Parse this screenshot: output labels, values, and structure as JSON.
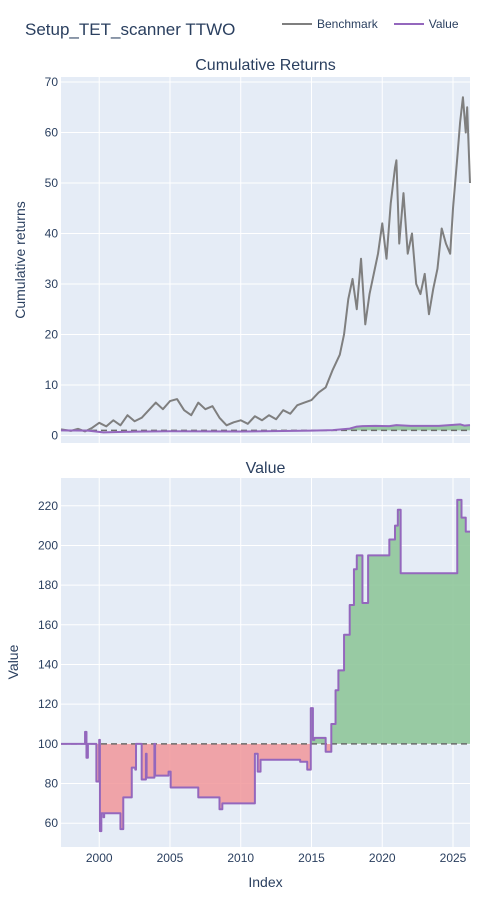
{
  "page": {
    "title": "Setup_TET_scanner TTWO"
  },
  "legend": [
    {
      "name": "Benchmark",
      "color": "#7f7f7f"
    },
    {
      "name": "Value",
      "color": "#9467bd"
    }
  ],
  "colors": {
    "plot_bg": "#e5ecf6",
    "grid": "#ffffff",
    "benchmark": "#7f7f7f",
    "value": "#9467bd",
    "gain_fill": "#8fc79a",
    "loss_fill": "#f1979a",
    "baseline": "#6b6b6b"
  },
  "chart_data": [
    {
      "type": "line",
      "title": "Cumulative Returns",
      "xlabel": "",
      "ylabel": "Cumulative returns",
      "xlim": [
        1997.3,
        2026.2
      ],
      "ylim": [
        -1.5,
        71
      ],
      "xticks": [
        2000,
        2005,
        2010,
        2015,
        2020,
        2025
      ],
      "yticks": [
        0,
        10,
        20,
        30,
        40,
        50,
        60,
        70
      ],
      "grid": true,
      "baseline": 1,
      "series": [
        {
          "name": "Benchmark",
          "x": [
            1997.3,
            1998.0,
            1998.5,
            1999.0,
            1999.5,
            2000.0,
            2000.5,
            2001.0,
            2001.5,
            2002.0,
            2002.5,
            2003.0,
            2003.5,
            2004.0,
            2004.5,
            2005.0,
            2005.5,
            2006.0,
            2006.5,
            2007.0,
            2007.5,
            2008.0,
            2008.5,
            2009.0,
            2009.5,
            2010.0,
            2010.5,
            2011.0,
            2011.5,
            2012.0,
            2012.5,
            2013.0,
            2013.5,
            2014.0,
            2014.5,
            2015.0,
            2015.5,
            2016.0,
            2016.5,
            2017.0,
            2017.3,
            2017.6,
            2017.9,
            2018.2,
            2018.5,
            2018.8,
            2019.1,
            2019.4,
            2019.7,
            2020.0,
            2020.3,
            2020.6,
            2020.9,
            2021.0,
            2021.2,
            2021.5,
            2021.8,
            2022.1,
            2022.4,
            2022.7,
            2023.0,
            2023.3,
            2023.6,
            2023.9,
            2024.2,
            2024.5,
            2024.8,
            2025.0,
            2025.3,
            2025.5,
            2025.7,
            2025.9,
            2026.0,
            2026.2
          ],
          "values": [
            1.2,
            0.9,
            1.3,
            0.8,
            1.5,
            2.5,
            1.8,
            3.0,
            2.0,
            4.0,
            2.8,
            3.5,
            5.0,
            6.5,
            5.2,
            6.8,
            7.2,
            5.0,
            4.0,
            6.5,
            5.2,
            5.8,
            3.5,
            2.0,
            2.6,
            3.0,
            2.3,
            3.8,
            3.0,
            4.0,
            3.2,
            5.0,
            4.3,
            6.0,
            6.5,
            7.0,
            8.5,
            9.5,
            13.0,
            16.0,
            20.0,
            27.0,
            31.0,
            25.0,
            35.0,
            22.0,
            28.0,
            32.0,
            36.0,
            42.0,
            35.0,
            46.0,
            53.0,
            54.5,
            38.0,
            48.0,
            36.0,
            40.0,
            30.0,
            28.0,
            32.0,
            24.0,
            29.0,
            33.0,
            41.0,
            38.0,
            36.0,
            45.0,
            55.0,
            62.0,
            67.0,
            60.0,
            65.0,
            50.0
          ]
        },
        {
          "name": "Value",
          "x": [
            1997.3,
            1999.2,
            2000.3,
            2002.5,
            2005.0,
            2010.0,
            2015.0,
            2016.5,
            2017.7,
            2018.2,
            2018.6,
            2019.5,
            2020.5,
            2021.0,
            2022.0,
            2024.0,
            2025.5,
            2025.8,
            2026.2
          ],
          "values": [
            1.0,
            0.95,
            0.6,
            0.75,
            0.82,
            0.78,
            0.95,
            1.05,
            1.35,
            1.75,
            1.85,
            1.9,
            1.85,
            2.05,
            1.9,
            1.9,
            2.2,
            1.95,
            2.05
          ]
        }
      ]
    },
    {
      "type": "line",
      "title": "Value",
      "xlabel": "Index",
      "ylabel": "Value",
      "xlim": [
        1997.3,
        2026.2
      ],
      "ylim": [
        48,
        234
      ],
      "xticks": [
        2000,
        2005,
        2010,
        2015,
        2020,
        2025
      ],
      "yticks": [
        60,
        80,
        100,
        120,
        140,
        160,
        180,
        200,
        220
      ],
      "grid": true,
      "baseline": 100,
      "series": [
        {
          "name": "Value",
          "x": [
            1997.3,
            1999.0,
            1999.0,
            1999.1,
            1999.1,
            1999.2,
            1999.2,
            1999.8,
            1999.8,
            2000.0,
            2000.0,
            2000.05,
            2000.05,
            2000.15,
            2000.15,
            2000.3,
            2000.3,
            2000.35,
            2000.35,
            2001.5,
            2001.5,
            2001.7,
            2001.7,
            2002.3,
            2002.3,
            2002.55,
            2002.55,
            2002.6,
            2002.6,
            2003.0,
            2003.0,
            2003.3,
            2003.3,
            2003.35,
            2003.35,
            2003.9,
            2003.9,
            2003.95,
            2003.95,
            2004.9,
            2004.9,
            2005.05,
            2005.05,
            2005.3,
            2005.3,
            2005.5,
            2005.5,
            2007.0,
            2007.0,
            2007.3,
            2007.3,
            2008.5,
            2008.5,
            2008.7,
            2008.7,
            2011.0,
            2011.0,
            2011.2,
            2011.2,
            2011.4,
            2011.4,
            2014.2,
            2014.2,
            2014.7,
            2014.7,
            2014.95,
            2014.95,
            2015.1,
            2015.1,
            2015.2,
            2015.2,
            2016.0,
            2016.0,
            2016.4,
            2016.4,
            2016.7,
            2016.7,
            2016.9,
            2016.9,
            2017.3,
            2017.3,
            2017.7,
            2017.7,
            2018.0,
            2018.0,
            2018.2,
            2018.2,
            2018.6,
            2018.6,
            2019.0,
            2019.0,
            2019.2,
            2019.2,
            2020.5,
            2020.5,
            2020.9,
            2020.9,
            2021.1,
            2021.1,
            2021.3,
            2021.3,
            2025.0,
            2025.0,
            2025.3,
            2025.3,
            2025.6,
            2025.6,
            2025.9,
            2025.9,
            2026.2
          ],
          "values": [
            100,
            100,
            106,
            106,
            93,
            93,
            100,
            100,
            81,
            81,
            102,
            102,
            56,
            56,
            65,
            65,
            63,
            63,
            65,
            65,
            57,
            57,
            73,
            73,
            88,
            88,
            87,
            87,
            100,
            100,
            82,
            82,
            95,
            95,
            83,
            83,
            100,
            100,
            84,
            84,
            86,
            86,
            78,
            78,
            78,
            78,
            78,
            78,
            73,
            73,
            73,
            73,
            67,
            67,
            70,
            70,
            95,
            95,
            86,
            86,
            92,
            92,
            91,
            91,
            87,
            87,
            118,
            118,
            102,
            102,
            103,
            103,
            96,
            96,
            110,
            110,
            127,
            127,
            137,
            137,
            155,
            155,
            170,
            170,
            188,
            188,
            195,
            195,
            171,
            171,
            195,
            195,
            195,
            195,
            203,
            203,
            210,
            210,
            218,
            218,
            186,
            186,
            186,
            186,
            223,
            223,
            214,
            214,
            207,
            207
          ]
        }
      ]
    }
  ]
}
